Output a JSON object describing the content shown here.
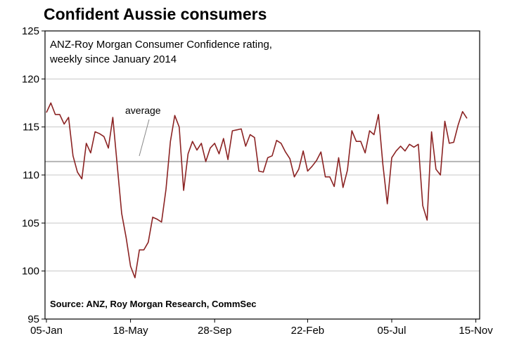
{
  "chart_data": {
    "type": "line",
    "title": "Confident Aussie consumers",
    "subtitle_lines": [
      "ANZ-Roy Morgan Consumer Confidence rating,",
      "weekly since January 2014"
    ],
    "source": "Source: ANZ, Roy Morgan Research, CommSec",
    "ylim": [
      95,
      125
    ],
    "yticks": [
      95,
      100,
      105,
      110,
      115,
      120,
      125
    ],
    "xtick_labels": [
      "05-Jan",
      "18-May",
      "28-Sep",
      "22-Feb",
      "05-Jul",
      "15-Nov"
    ],
    "xtick_index": [
      0,
      19,
      38,
      59,
      78,
      97
    ],
    "grid": true,
    "average": {
      "label": "average",
      "value": 111.4
    },
    "colors": {
      "series": "#8b2323",
      "grid": "#c8c8c8",
      "average": "#b4b4b4"
    },
    "series": [
      {
        "values": [
          116.5,
          117.5,
          116.3,
          116.3,
          115.3,
          116.0,
          112.0,
          110.3,
          109.6,
          113.3,
          112.3,
          114.5,
          114.3,
          114.0,
          112.8,
          116.0,
          111.0,
          106.0,
          103.5,
          100.5,
          99.3,
          102.2,
          102.2,
          103.0,
          105.6,
          105.4,
          105.1,
          108.5,
          113.5,
          116.2,
          115.0,
          108.4,
          112.2,
          113.5,
          112.6,
          113.3,
          111.4,
          112.8,
          113.3,
          112.2,
          113.8,
          111.6,
          114.6,
          114.7,
          114.8,
          113.0,
          114.2,
          113.9,
          110.4,
          110.3,
          111.8,
          112.0,
          113.6,
          113.3,
          112.4,
          111.7,
          109.8,
          110.6,
          112.5,
          110.4,
          110.9,
          111.5,
          112.4,
          109.8,
          109.8,
          108.8,
          111.8,
          108.7,
          110.5,
          114.6,
          113.5,
          113.5,
          112.3,
          114.6,
          114.2,
          116.3,
          111.1,
          107.0,
          111.8,
          112.5,
          113.0,
          112.5,
          113.2,
          112.9,
          113.2,
          106.8,
          105.3,
          114.5,
          110.6,
          110.0,
          115.6,
          113.3,
          113.4,
          115.2,
          116.6,
          115.9
        ]
      }
    ]
  }
}
